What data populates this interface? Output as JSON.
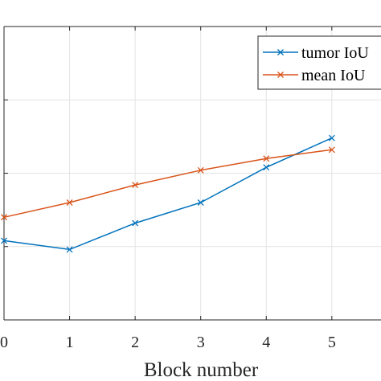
{
  "chart_data": {
    "type": "line",
    "xlabel": "Block number",
    "ylabel": "",
    "x": [
      0,
      1,
      2,
      3,
      4,
      5
    ],
    "xlim": [
      0,
      5.75
    ],
    "ylim": [
      0,
      1
    ],
    "x_ticks": [
      "0",
      "1",
      "2",
      "3",
      "4",
      "5"
    ],
    "grid": true,
    "legend_position": "top-right",
    "series": [
      {
        "name": "tumor IoU",
        "values": [
          0.27,
          0.24,
          0.33,
          0.4,
          0.52,
          0.62
        ],
        "color": "#0072BD",
        "marker": "x"
      },
      {
        "name": "mean IoU",
        "values": [
          0.35,
          0.4,
          0.46,
          0.51,
          0.55,
          0.58
        ],
        "color": "#D95319",
        "marker": "x"
      }
    ]
  }
}
